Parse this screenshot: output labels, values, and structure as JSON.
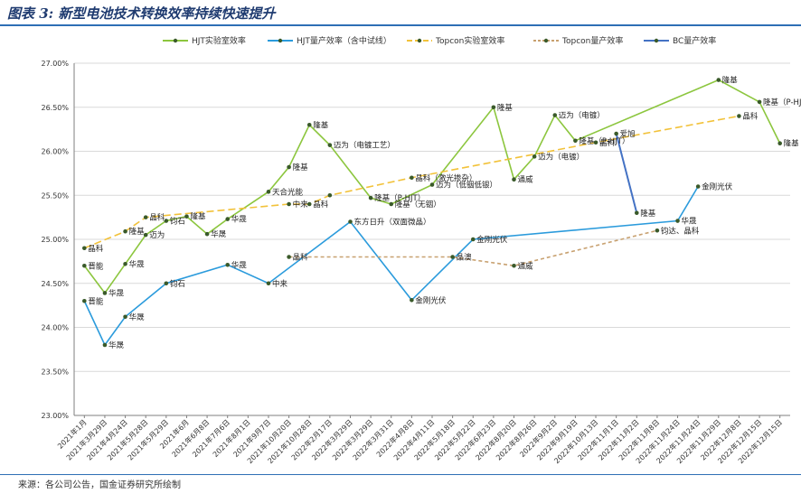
{
  "header": {
    "title": "图表 3: 新型电池技术转换效率持续快速提升"
  },
  "footer": {
    "source": "来源：各公司公告，国金证券研究所绘制"
  },
  "colors": {
    "hjt_lab": "#8cc63e",
    "hjt_mass": "#2b9bdc",
    "topcon_lab": "#f2c23a",
    "topcon_mass": "#c8a170",
    "bc_mass": "#4472c4",
    "marker": "#3a5a2a",
    "grid": "#d9d9d9",
    "axis": "#7f7f7f"
  },
  "chart_data": {
    "type": "line",
    "ylim": [
      23.0,
      27.0
    ],
    "yticks": [
      "23.00%",
      "23.50%",
      "24.00%",
      "24.50%",
      "25.00%",
      "25.50%",
      "26.00%",
      "26.50%",
      "27.00%"
    ],
    "categories": [
      "2021年1月",
      "2021年3月29日",
      "2021年4月24日",
      "2021年5月28日",
      "2021年5月29日",
      "2021年6月",
      "2021年6月8日",
      "2021年7月6日",
      "2021年8月1日",
      "2021年9月7日",
      "2021年10月20日",
      "2021年10月28日",
      "2022年2月17日",
      "2022年3月29日",
      "2022年3月29日",
      "2022年3月31日",
      "2022年4月8日",
      "2022年4月11日",
      "2022年5月18日",
      "2022年5月22日",
      "2022年6月23日",
      "2022年8月20日",
      "2022年8月26日",
      "2022年9月2日",
      "2022年9月19日",
      "2022年10月13日",
      "2022年11月1日",
      "2022年11月2日",
      "2022年11月8日",
      "2022年11月24日",
      "2022年11月24日",
      "2022年11月29日",
      "2022年12月8日",
      "2022年12月15日",
      "2022年12月15日"
    ],
    "series": [
      {
        "name": "HJT实验室效率",
        "key": "hjt_lab",
        "points": [
          {
            "x": 0,
            "y": 24.7,
            "label": "晋能"
          },
          {
            "x": 1,
            "y": 24.39,
            "label": "华晟"
          },
          {
            "x": 2,
            "y": 24.72,
            "label": "华晟"
          },
          {
            "x": 3,
            "y": 25.05,
            "label": "迈为"
          },
          {
            "x": 4,
            "y": 25.21,
            "label": "钧石"
          },
          {
            "x": 5,
            "y": 25.26,
            "label": "隆基"
          },
          {
            "x": 6,
            "y": 25.06,
            "label": "华晟"
          },
          {
            "x": 7,
            "y": 25.23,
            "label": "华晟"
          },
          {
            "x": 9,
            "y": 25.54,
            "label": "天合光能"
          },
          {
            "x": 10,
            "y": 25.82,
            "label": "隆基"
          },
          {
            "x": 11,
            "y": 26.3,
            "label": "隆基"
          },
          {
            "x": 12,
            "y": 26.07,
            "label": "迈为（电镀工艺）"
          },
          {
            "x": 14,
            "y": 25.47,
            "label": "隆基（P-HJT）"
          },
          {
            "x": 15,
            "y": 25.4,
            "label": "隆基（无铟）"
          },
          {
            "x": 17,
            "y": 25.62,
            "label": "迈为（低铟低银）"
          },
          {
            "x": 20,
            "y": 26.5,
            "label": "隆基"
          },
          {
            "x": 21,
            "y": 25.68,
            "label": "通威"
          },
          {
            "x": 22,
            "y": 25.94,
            "label": "迈为（电镀）"
          },
          {
            "x": 23,
            "y": 26.41,
            "label": "迈为（电镀）"
          },
          {
            "x": 24,
            "y": 26.12,
            "label": "隆基（P-HJT）"
          },
          {
            "x": 31,
            "y": 26.81,
            "label": "隆基"
          },
          {
            "x": 33,
            "y": 26.56,
            "label": "隆基（P-HJT）"
          },
          {
            "x": 34,
            "y": 26.09,
            "label": "隆基（无铟）"
          }
        ]
      },
      {
        "name": "HJT量产效率（含中试线）",
        "key": "hjt_mass",
        "points": [
          {
            "x": 0,
            "y": 24.3,
            "label": "晋能"
          },
          {
            "x": 1,
            "y": 23.8,
            "label": "华晟"
          },
          {
            "x": 2,
            "y": 24.12,
            "label": "华晟"
          },
          {
            "x": 4,
            "y": 24.5,
            "label": "钧石"
          },
          {
            "x": 7,
            "y": 24.71,
            "label": "华晟"
          },
          {
            "x": 9,
            "y": 24.5,
            "label": "中来"
          },
          {
            "x": 13,
            "y": 25.2,
            "label": "东方日升（双面微晶）"
          },
          {
            "x": 16,
            "y": 24.31,
            "label": "金刚光伏"
          },
          {
            "x": 19,
            "y": 25.0,
            "label": "金刚光伏"
          },
          {
            "x": 29,
            "y": 25.21,
            "label": "华晟"
          },
          {
            "x": 30,
            "y": 25.6,
            "label": "金刚光伏"
          }
        ]
      },
      {
        "name": "Topcon实验室效率",
        "key": "topcon_lab",
        "points": [
          {
            "x": 0,
            "y": 24.9,
            "label": "晶科"
          },
          {
            "x": 2,
            "y": 25.09,
            "label": "隆基"
          },
          {
            "x": 3,
            "y": 25.25,
            "label": "晶科"
          },
          {
            "x": 10,
            "y": 25.4,
            "label": "中来"
          },
          {
            "x": 11,
            "y": 25.4,
            "label": "晶科"
          },
          {
            "x": 12,
            "y": 25.5,
            "label": ""
          },
          {
            "x": 16,
            "y": 25.7,
            "label": "晶科（激光掺杂）"
          },
          {
            "x": 25,
            "y": 26.1,
            "label": "晶科"
          },
          {
            "x": 32,
            "y": 26.4,
            "label": "晶科"
          }
        ]
      },
      {
        "name": "Topcon量产效率",
        "key": "topcon_mass",
        "points": [
          {
            "x": 10,
            "y": 24.8,
            "label": "晶科"
          },
          {
            "x": 18,
            "y": 24.8,
            "label": "晶澳"
          },
          {
            "x": 21,
            "y": 24.7,
            "label": "通威"
          },
          {
            "x": 28,
            "y": 25.1,
            "label": "钧达、晶科"
          }
        ]
      },
      {
        "name": "BC量产效率",
        "key": "bc_mass",
        "points": [
          {
            "x": 26,
            "y": 26.2,
            "label": "爱旭"
          },
          {
            "x": 27,
            "y": 25.3,
            "label": "隆基"
          }
        ]
      }
    ]
  }
}
